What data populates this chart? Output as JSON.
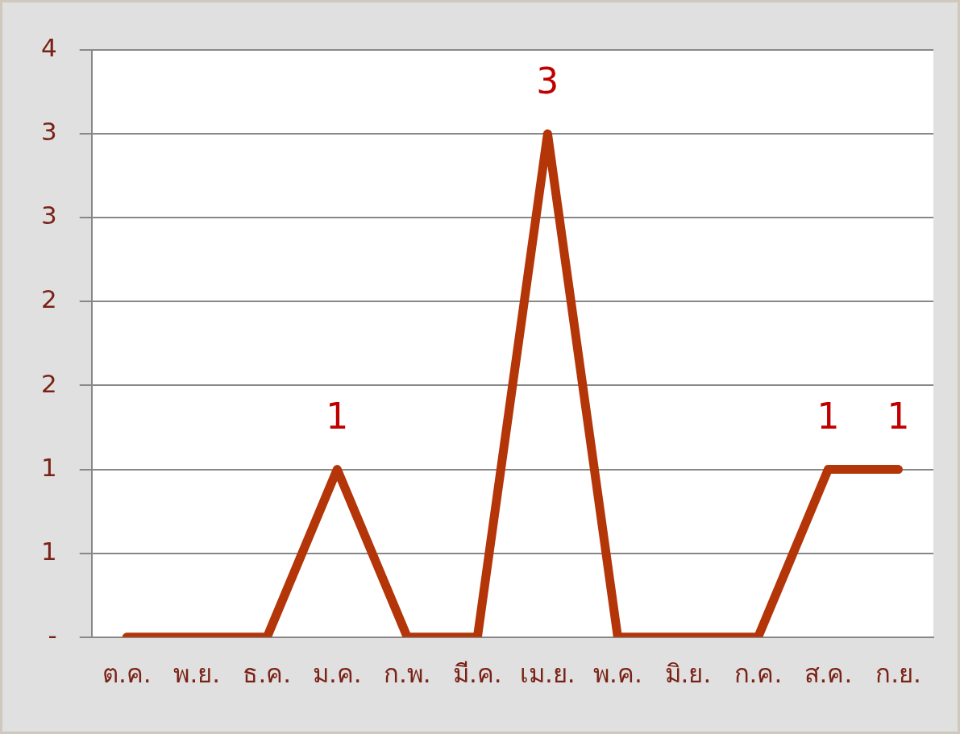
{
  "chart_data": {
    "type": "line",
    "categories": [
      "ต.ค.",
      "พ.ย.",
      "ธ.ค.",
      "ม.ค.",
      "ก.พ.",
      "มี.ค.",
      "เม.ย.",
      "พ.ค.",
      "มิ.ย.",
      "ก.ค.",
      "ส.ค.",
      "ก.ย."
    ],
    "series": [
      {
        "color": "#b33508",
        "values": [
          0,
          0,
          0,
          1,
          0,
          0,
          3,
          0,
          0,
          0,
          1,
          1
        ],
        "value_labels": [
          null,
          null,
          null,
          "1",
          null,
          null,
          "3",
          null,
          null,
          null,
          "1",
          "1"
        ]
      }
    ],
    "ylim": [
      0,
      3.5
    ],
    "yticks": [
      {
        "value": 0,
        "label": "-"
      },
      {
        "value": 0.5,
        "label": "1"
      },
      {
        "value": 1,
        "label": "1"
      },
      {
        "value": 1.5,
        "label": "2"
      },
      {
        "value": 2,
        "label": "2"
      },
      {
        "value": 2.5,
        "label": "3"
      },
      {
        "value": 3,
        "label": "3"
      },
      {
        "value": 3.5,
        "label": "4"
      }
    ],
    "grid": "y",
    "legend": false,
    "marker": "none",
    "line_style": "solid"
  }
}
